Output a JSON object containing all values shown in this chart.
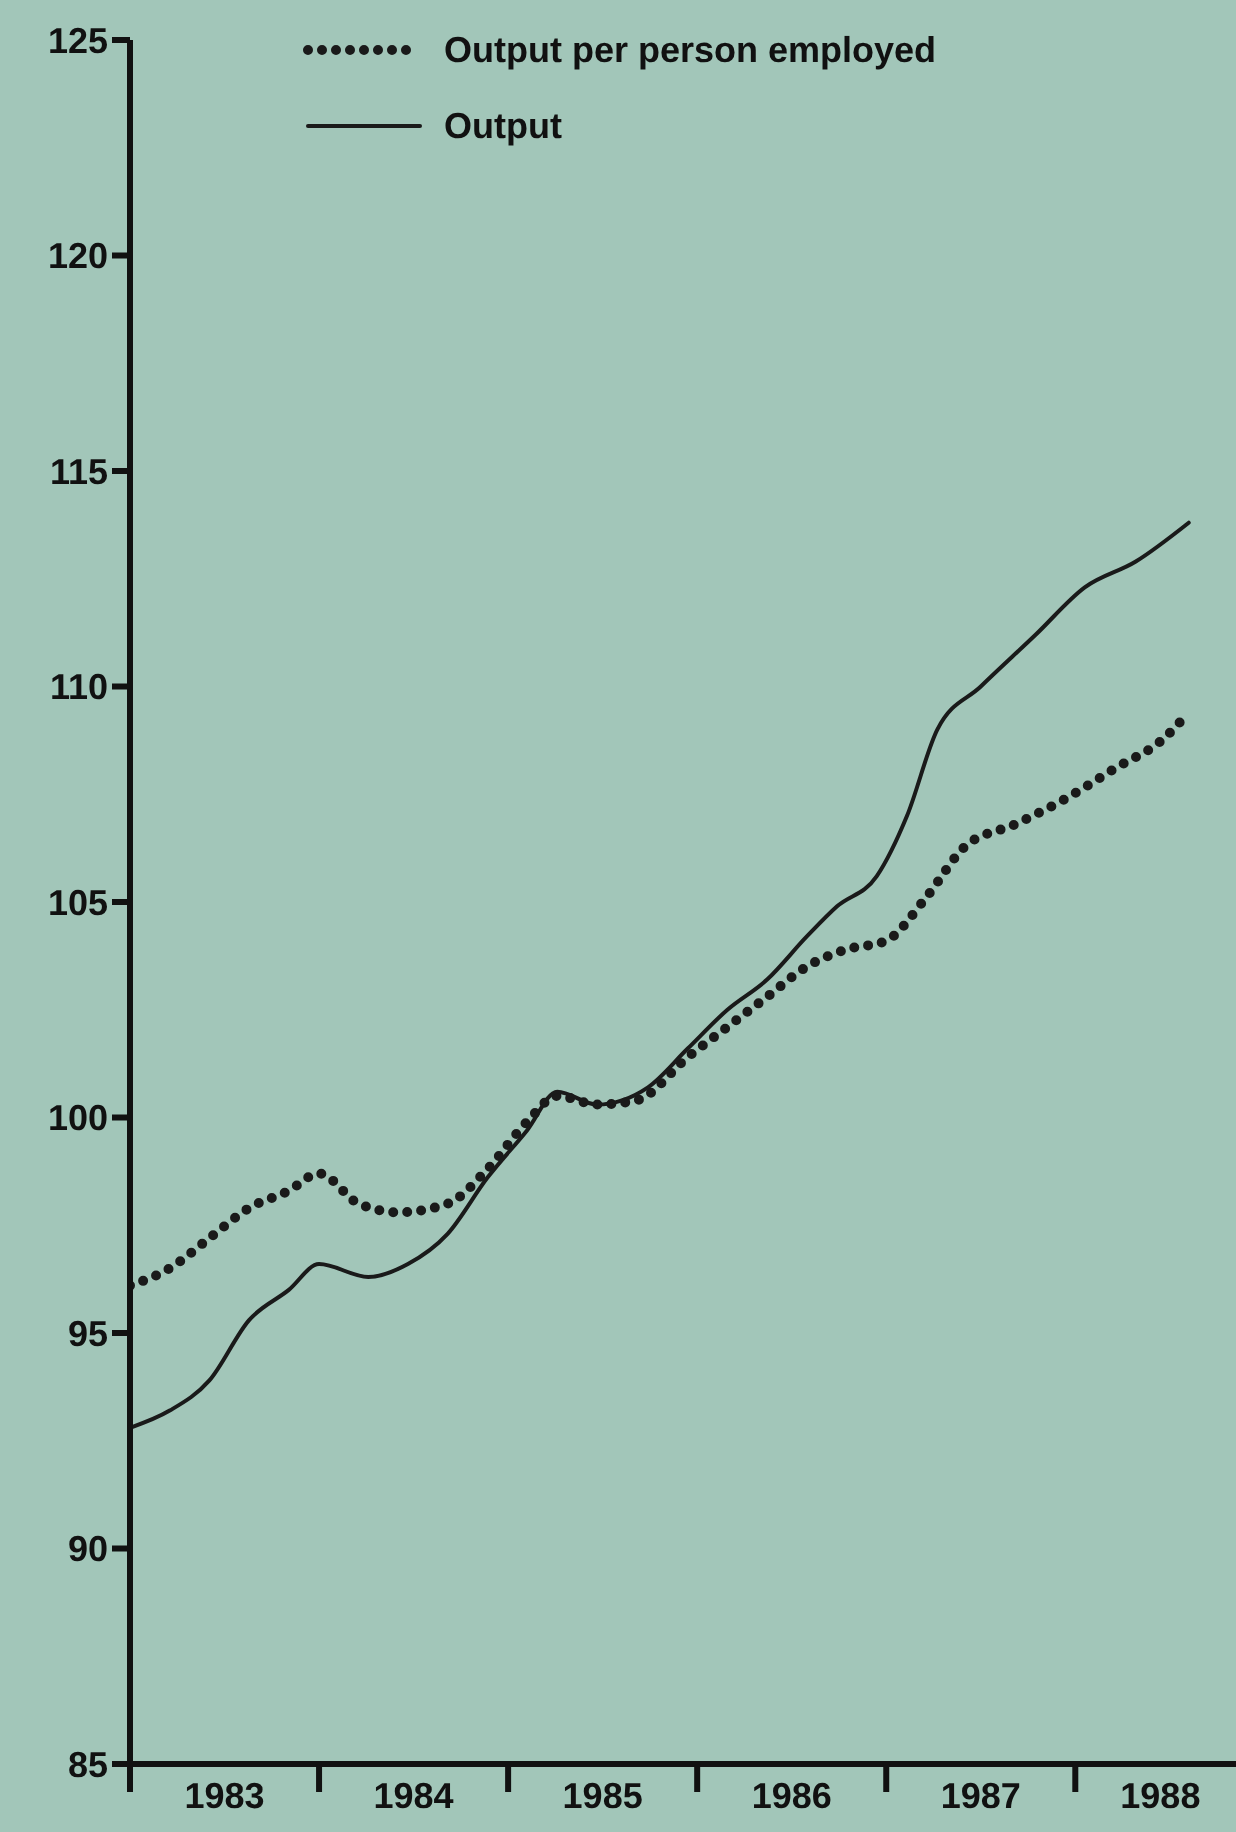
{
  "chart_data": {
    "type": "line",
    "series": [
      {
        "name": "Output per person employed",
        "color": "#1a1a1a",
        "line_style": "dotted",
        "x": [
          1983,
          1983.21,
          1983.42,
          1983.63,
          1983.84,
          1984,
          1984.21,
          1984.42,
          1984.68,
          1984.89,
          1985.1,
          1985.26,
          1985.47,
          1985.68,
          1985.95,
          1986.16,
          1986.37,
          1986.58,
          1986.79,
          1987,
          1987.21,
          1987.42,
          1987.68,
          1987.95,
          1988.21,
          1988.47,
          1988.6
        ],
        "values": [
          96.1,
          96.5,
          97.2,
          97.9,
          98.3,
          98.7,
          98.0,
          97.8,
          98.0,
          98.8,
          99.9,
          100.5,
          100.3,
          100.4,
          101.4,
          102.1,
          102.8,
          103.5,
          103.9,
          104.1,
          105.1,
          106.3,
          106.8,
          107.4,
          108.1,
          108.8,
          109.4
        ]
      },
      {
        "name": "Output",
        "color": "#1a1a1a",
        "line_style": "solid",
        "x": [
          1983,
          1983.21,
          1983.42,
          1983.63,
          1983.84,
          1984,
          1984.26,
          1984.47,
          1984.68,
          1984.89,
          1985.1,
          1985.26,
          1985.47,
          1985.74,
          1985.95,
          1986.16,
          1986.37,
          1986.58,
          1986.74,
          1986.95,
          1987.11,
          1987.27,
          1987.5,
          1987.79,
          1988.05,
          1988.32,
          1988.6
        ],
        "values": [
          92.8,
          93.2,
          93.9,
          95.3,
          96.0,
          96.6,
          96.3,
          96.6,
          97.3,
          98.6,
          99.7,
          100.6,
          100.3,
          100.7,
          101.6,
          102.5,
          103.2,
          104.2,
          104.9,
          105.6,
          107.0,
          109.0,
          110.0,
          111.2,
          112.3,
          112.9,
          113.8
        ]
      }
    ],
    "xlim": [
      1983,
      1988.85
    ],
    "xticks": [
      {
        "value": 1983,
        "label": null
      },
      {
        "value": 1983.5,
        "label": "1983"
      },
      {
        "value": 1984,
        "label": null
      },
      {
        "value": 1984.5,
        "label": "1984"
      },
      {
        "value": 1985,
        "label": null
      },
      {
        "value": 1985.5,
        "label": "1985"
      },
      {
        "value": 1986,
        "label": null
      },
      {
        "value": 1986.5,
        "label": "1986"
      },
      {
        "value": 1987,
        "label": null
      },
      {
        "value": 1987.5,
        "label": "1987"
      },
      {
        "value": 1988,
        "label": null
      },
      {
        "value": 1988.45,
        "label": "1988"
      }
    ],
    "ylim": [
      85,
      125
    ],
    "yticks": [
      85,
      90,
      95,
      100,
      105,
      110,
      115,
      120,
      125
    ],
    "grid": false,
    "legend": "top",
    "marker": "none"
  }
}
